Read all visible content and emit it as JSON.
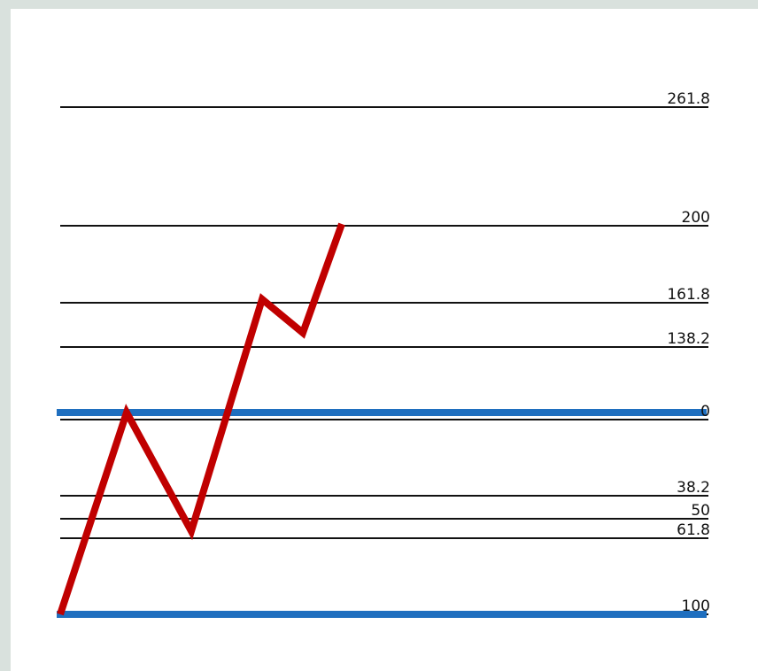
{
  "chart_data": {
    "type": "line",
    "levels": [
      {
        "label": "261.8",
        "value": 261.8,
        "style": "black"
      },
      {
        "label": "200",
        "value": 200,
        "style": "black"
      },
      {
        "label": "161.8",
        "value": 161.8,
        "style": "black"
      },
      {
        "label": "138.2",
        "value": 138.2,
        "style": "black"
      },
      {
        "label": "0",
        "value": 0,
        "style": "black"
      },
      {
        "label": "38.2",
        "value": 38.2,
        "style": "black"
      },
      {
        "label": "50",
        "value": 50,
        "style": "black"
      },
      {
        "label": "61.8",
        "value": 61.8,
        "style": "black"
      },
      {
        "label": "100",
        "value": 100,
        "style": "black"
      }
    ],
    "anchor_levels": [
      {
        "value": 0,
        "color": "#1f6fbf"
      },
      {
        "value": 100,
        "color": "#1f6fbf"
      }
    ],
    "series": [
      {
        "color": "#c00000",
        "points": [
          {
            "x": 0,
            "y": 100
          },
          {
            "x": 1,
            "y": 0
          },
          {
            "x": 2,
            "y": 61.8
          },
          {
            "x": 3,
            "y": -61.8
          },
          {
            "x": 4,
            "y": -38.2
          },
          {
            "x": 5,
            "y": -100
          }
        ]
      }
    ],
    "grid": false,
    "legend": "none"
  }
}
